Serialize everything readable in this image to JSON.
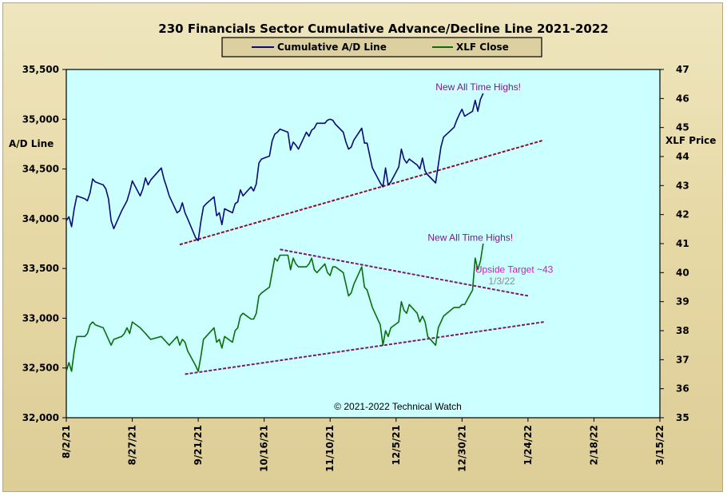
{
  "chart_data": {
    "type": "line",
    "title": "230 Financials  Sector Cumulative  Advance/Decline  Line 2021-2022",
    "ylabel_left": "A/D Line",
    "ylabel_right": "XLF Price",
    "ylim_left": [
      32000,
      35500
    ],
    "ylim_right": [
      35,
      47
    ],
    "yticks_left": [
      "35,500",
      "35,000",
      "34,500",
      "34,000",
      "33,500",
      "33,000",
      "32,500",
      "32,000"
    ],
    "yticks_right": [
      "47",
      "46",
      "45",
      "44",
      "43",
      "42",
      "41",
      "40",
      "39",
      "38",
      "37",
      "36",
      "35"
    ],
    "x_tick_labels": [
      "8/2/21",
      "8/27/21",
      "9/21/21",
      "10/16/21",
      "11/10/21",
      "12/5/21",
      "12/30/21",
      "1/24/22",
      "2/18/22",
      "3/15/22"
    ],
    "x_range": [
      "2021-08-02",
      "2022-03-15"
    ],
    "grid": false,
    "legend_placement": "top-center",
    "series": [
      {
        "name": "Cumulative A/D Line",
        "axis": "left",
        "color": "#0a0a78",
        "points": [
          [
            "2021-08-02",
            33980
          ],
          [
            "2021-08-03",
            34020
          ],
          [
            "2021-08-04",
            33920
          ],
          [
            "2021-08-05",
            34100
          ],
          [
            "2021-08-06",
            34230
          ],
          [
            "2021-08-09",
            34200
          ],
          [
            "2021-08-10",
            34180
          ],
          [
            "2021-08-11",
            34260
          ],
          [
            "2021-08-12",
            34400
          ],
          [
            "2021-08-13",
            34370
          ],
          [
            "2021-08-16",
            34340
          ],
          [
            "2021-08-17",
            34300
          ],
          [
            "2021-08-18",
            34200
          ],
          [
            "2021-08-19",
            33980
          ],
          [
            "2021-08-20",
            33900
          ],
          [
            "2021-08-23",
            34080
          ],
          [
            "2021-08-24",
            34130
          ],
          [
            "2021-08-25",
            34180
          ],
          [
            "2021-08-26",
            34270
          ],
          [
            "2021-08-27",
            34380
          ],
          [
            "2021-08-30",
            34230
          ],
          [
            "2021-08-31",
            34300
          ],
          [
            "2021-09-01",
            34410
          ],
          [
            "2021-09-02",
            34340
          ],
          [
            "2021-09-03",
            34390
          ],
          [
            "2021-09-07",
            34510
          ],
          [
            "2021-09-08",
            34400
          ],
          [
            "2021-09-09",
            34320
          ],
          [
            "2021-09-10",
            34230
          ],
          [
            "2021-09-13",
            34060
          ],
          [
            "2021-09-14",
            34080
          ],
          [
            "2021-09-15",
            34160
          ],
          [
            "2021-09-16",
            34060
          ],
          [
            "2021-09-17",
            34000
          ],
          [
            "2021-09-20",
            33810
          ],
          [
            "2021-09-21",
            33780
          ],
          [
            "2021-09-22",
            33970
          ],
          [
            "2021-09-23",
            34120
          ],
          [
            "2021-09-24",
            34150
          ],
          [
            "2021-09-27",
            34220
          ],
          [
            "2021-09-28",
            34030
          ],
          [
            "2021-09-29",
            34060
          ],
          [
            "2021-09-30",
            33940
          ],
          [
            "2021-10-01",
            34100
          ],
          [
            "2021-10-04",
            34060
          ],
          [
            "2021-10-05",
            34150
          ],
          [
            "2021-10-06",
            34170
          ],
          [
            "2021-10-07",
            34290
          ],
          [
            "2021-10-08",
            34230
          ],
          [
            "2021-10-11",
            34320
          ],
          [
            "2021-10-12",
            34280
          ],
          [
            "2021-10-13",
            34350
          ],
          [
            "2021-10-14",
            34560
          ],
          [
            "2021-10-15",
            34600
          ],
          [
            "2021-10-18",
            34630
          ],
          [
            "2021-10-19",
            34780
          ],
          [
            "2021-10-20",
            34850
          ],
          [
            "2021-10-21",
            34870
          ],
          [
            "2021-10-22",
            34900
          ],
          [
            "2021-10-25",
            34870
          ],
          [
            "2021-10-26",
            34690
          ],
          [
            "2021-10-27",
            34770
          ],
          [
            "2021-10-28",
            34740
          ],
          [
            "2021-10-29",
            34700
          ],
          [
            "2021-11-01",
            34870
          ],
          [
            "2021-11-02",
            34830
          ],
          [
            "2021-11-03",
            34890
          ],
          [
            "2021-11-04",
            34910
          ],
          [
            "2021-11-05",
            34960
          ],
          [
            "2021-11-08",
            34960
          ],
          [
            "2021-11-09",
            34990
          ],
          [
            "2021-11-10",
            35000
          ],
          [
            "2021-11-11",
            34990
          ],
          [
            "2021-11-12",
            34950
          ],
          [
            "2021-11-15",
            34870
          ],
          [
            "2021-11-16",
            34770
          ],
          [
            "2021-11-17",
            34700
          ],
          [
            "2021-11-18",
            34720
          ],
          [
            "2021-11-19",
            34790
          ],
          [
            "2021-11-22",
            34910
          ],
          [
            "2021-11-23",
            34760
          ],
          [
            "2021-11-24",
            34760
          ],
          [
            "2021-11-26",
            34510
          ],
          [
            "2021-11-29",
            34360
          ],
          [
            "2021-11-30",
            34320
          ],
          [
            "2021-12-01",
            34510
          ],
          [
            "2021-12-02",
            34340
          ],
          [
            "2021-12-03",
            34370
          ],
          [
            "2021-12-06",
            34520
          ],
          [
            "2021-12-07",
            34700
          ],
          [
            "2021-12-08",
            34600
          ],
          [
            "2021-12-09",
            34560
          ],
          [
            "2021-12-10",
            34600
          ],
          [
            "2021-12-13",
            34540
          ],
          [
            "2021-12-14",
            34500
          ],
          [
            "2021-12-15",
            34610
          ],
          [
            "2021-12-16",
            34480
          ],
          [
            "2021-12-17",
            34440
          ],
          [
            "2021-12-20",
            34360
          ],
          [
            "2021-12-21",
            34540
          ],
          [
            "2021-12-22",
            34720
          ],
          [
            "2021-12-23",
            34820
          ],
          [
            "2021-12-27",
            34920
          ],
          [
            "2021-12-28",
            34990
          ],
          [
            "2021-12-29",
            35050
          ],
          [
            "2021-12-30",
            35100
          ],
          [
            "2021-12-31",
            35030
          ],
          [
            "2022-01-03",
            35080
          ],
          [
            "2022-01-04",
            35190
          ],
          [
            "2022-01-05",
            35080
          ],
          [
            "2022-01-06",
            35200
          ],
          [
            "2022-01-07",
            35260
          ]
        ]
      },
      {
        "name": "XLF Close",
        "axis": "right",
        "color": "#0a6e0a",
        "points": [
          [
            "2021-08-02",
            36.6
          ],
          [
            "2021-08-03",
            36.9
          ],
          [
            "2021-08-04",
            36.6
          ],
          [
            "2021-08-05",
            37.3
          ],
          [
            "2021-08-06",
            37.8
          ],
          [
            "2021-08-09",
            37.8
          ],
          [
            "2021-08-10",
            37.9
          ],
          [
            "2021-08-11",
            38.2
          ],
          [
            "2021-08-12",
            38.3
          ],
          [
            "2021-08-13",
            38.2
          ],
          [
            "2021-08-16",
            38.1
          ],
          [
            "2021-08-17",
            37.9
          ],
          [
            "2021-08-18",
            37.7
          ],
          [
            "2021-08-19",
            37.5
          ],
          [
            "2021-08-20",
            37.7
          ],
          [
            "2021-08-23",
            37.8
          ],
          [
            "2021-08-24",
            37.9
          ],
          [
            "2021-08-25",
            38.1
          ],
          [
            "2021-08-26",
            37.9
          ],
          [
            "2021-08-27",
            38.3
          ],
          [
            "2021-08-30",
            38.1
          ],
          [
            "2021-08-31",
            38.0
          ],
          [
            "2021-09-01",
            37.9
          ],
          [
            "2021-09-02",
            37.8
          ],
          [
            "2021-09-03",
            37.7
          ],
          [
            "2021-09-07",
            37.8
          ],
          [
            "2021-09-08",
            37.7
          ],
          [
            "2021-09-09",
            37.6
          ],
          [
            "2021-09-10",
            37.5
          ],
          [
            "2021-09-13",
            37.8
          ],
          [
            "2021-09-14",
            37.5
          ],
          [
            "2021-09-15",
            37.7
          ],
          [
            "2021-09-16",
            37.6
          ],
          [
            "2021-09-17",
            37.3
          ],
          [
            "2021-09-20",
            36.8
          ],
          [
            "2021-09-21",
            36.6
          ],
          [
            "2021-09-22",
            37.1
          ],
          [
            "2021-09-23",
            37.7
          ],
          [
            "2021-09-24",
            37.8
          ],
          [
            "2021-09-27",
            38.1
          ],
          [
            "2021-09-28",
            37.6
          ],
          [
            "2021-09-29",
            37.7
          ],
          [
            "2021-09-30",
            37.4
          ],
          [
            "2021-10-01",
            37.8
          ],
          [
            "2021-10-04",
            37.6
          ],
          [
            "2021-10-05",
            38.0
          ],
          [
            "2021-10-06",
            38.1
          ],
          [
            "2021-10-07",
            38.5
          ],
          [
            "2021-10-08",
            38.6
          ],
          [
            "2021-10-11",
            38.4
          ],
          [
            "2021-10-12",
            38.4
          ],
          [
            "2021-10-13",
            38.6
          ],
          [
            "2021-10-14",
            39.2
          ],
          [
            "2021-10-15",
            39.3
          ],
          [
            "2021-10-18",
            39.5
          ],
          [
            "2021-10-19",
            40.0
          ],
          [
            "2021-10-20",
            40.5
          ],
          [
            "2021-10-21",
            40.4
          ],
          [
            "2021-10-22",
            40.6
          ],
          [
            "2021-10-25",
            40.6
          ],
          [
            "2021-10-26",
            40.1
          ],
          [
            "2021-10-27",
            40.5
          ],
          [
            "2021-10-28",
            40.3
          ],
          [
            "2021-10-29",
            40.2
          ],
          [
            "2021-11-01",
            40.2
          ],
          [
            "2021-11-02",
            40.3
          ],
          [
            "2021-11-03",
            40.5
          ],
          [
            "2021-11-04",
            40.1
          ],
          [
            "2021-11-05",
            40.0
          ],
          [
            "2021-11-08",
            40.3
          ],
          [
            "2021-11-09",
            40.0
          ],
          [
            "2021-11-10",
            39.9
          ],
          [
            "2021-11-11",
            40.2
          ],
          [
            "2021-11-12",
            40.2
          ],
          [
            "2021-11-15",
            40.0
          ],
          [
            "2021-11-16",
            39.6
          ],
          [
            "2021-11-17",
            39.2
          ],
          [
            "2021-11-18",
            39.3
          ],
          [
            "2021-11-19",
            39.6
          ],
          [
            "2021-11-22",
            40.2
          ],
          [
            "2021-11-23",
            39.5
          ],
          [
            "2021-11-24",
            39.4
          ],
          [
            "2021-11-26",
            38.8
          ],
          [
            "2021-11-29",
            38.2
          ],
          [
            "2021-11-30",
            37.5
          ],
          [
            "2021-12-01",
            38.0
          ],
          [
            "2021-12-02",
            37.8
          ],
          [
            "2021-12-03",
            38.1
          ],
          [
            "2021-12-06",
            38.3
          ],
          [
            "2021-12-07",
            39.0
          ],
          [
            "2021-12-08",
            38.7
          ],
          [
            "2021-12-09",
            38.6
          ],
          [
            "2021-12-10",
            38.9
          ],
          [
            "2021-12-13",
            38.6
          ],
          [
            "2021-12-14",
            38.3
          ],
          [
            "2021-12-15",
            38.5
          ],
          [
            "2021-12-16",
            38.3
          ],
          [
            "2021-12-17",
            37.8
          ],
          [
            "2021-12-20",
            37.5
          ],
          [
            "2021-12-21",
            38.1
          ],
          [
            "2021-12-22",
            38.3
          ],
          [
            "2021-12-23",
            38.5
          ],
          [
            "2021-12-27",
            38.8
          ],
          [
            "2021-12-28",
            38.8
          ],
          [
            "2021-12-29",
            38.8
          ],
          [
            "2021-12-30",
            38.9
          ],
          [
            "2021-12-31",
            38.9
          ],
          [
            "2022-01-03",
            39.4
          ],
          [
            "2022-01-04",
            40.5
          ],
          [
            "2022-01-05",
            40.1
          ],
          [
            "2022-01-06",
            40.4
          ],
          [
            "2022-01-07",
            41.0
          ]
        ]
      }
    ],
    "trendlines": [
      {
        "axis": "left",
        "color": "#8b0f2a",
        "from": [
          "2021-09-14",
          33740
        ],
        "to": [
          "2022-01-30",
          34790
        ]
      },
      {
        "axis": "right",
        "color": "#7a1a6a",
        "from": [
          "2021-10-22",
          40.8
        ],
        "to": [
          "2022-01-24",
          39.2
        ]
      },
      {
        "axis": "right",
        "color": "#7a1a6a",
        "from": [
          "2021-09-16",
          36.5
        ],
        "to": [
          "2022-01-30",
          38.3
        ]
      }
    ],
    "annotations": [
      {
        "text": "New All Time Highs!",
        "x": "2021-12-20",
        "y": 35290,
        "axis": "left",
        "style": "purple"
      },
      {
        "text": "New All Time Highs!",
        "x": "2021-12-17",
        "y": 41.1,
        "axis": "right",
        "style": "purple"
      },
      {
        "text": "Upside Target  ~43",
        "x": "2022-01-04",
        "y": 40.0,
        "axis": "right",
        "style": "magenta"
      },
      {
        "text": "1/3/22",
        "x": "2022-01-09",
        "y": 39.6,
        "axis": "right",
        "style": "gray"
      }
    ]
  },
  "legend": {
    "ad_line_label": "Cumulative A/D Line",
    "xlf_label": "XLF Close"
  },
  "copyright": "© 2021-2022  Technical Watch"
}
